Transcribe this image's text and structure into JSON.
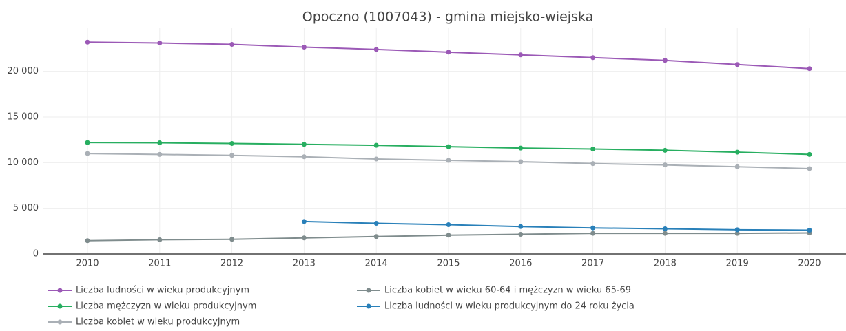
{
  "chart_data": {
    "type": "line",
    "title": "Opoczno (1007043) - gmina miejsko-wiejska",
    "categories": [
      "2010",
      "2011",
      "2012",
      "2013",
      "2014",
      "2015",
      "2016",
      "2017",
      "2018",
      "2019",
      "2020"
    ],
    "series": [
      {
        "name": "Liczba ludności w wieku produkcyjnym",
        "color": "#9b59b6",
        "values": [
          23200,
          23100,
          22950,
          22650,
          22400,
          22100,
          21800,
          21500,
          21200,
          20750,
          20300
        ]
      },
      {
        "name": "Liczba kobiet w wieku 60-64 i mężczyzn w wieku 65-69",
        "color": "#7f8c8d",
        "values": [
          1450,
          1550,
          1600,
          1750,
          1900,
          2050,
          2150,
          2250,
          2250,
          2250,
          2300
        ]
      },
      {
        "name": "Liczba mężczyzn w wieku produkcyjnym",
        "color": "#27ae60",
        "values": [
          12200,
          12170,
          12100,
          12000,
          11900,
          11750,
          11600,
          11500,
          11350,
          11150,
          10900
        ]
      },
      {
        "name": "Liczba ludności w wieku produkcyjnym do 24 roku życia",
        "color": "#2980b9",
        "values": [
          null,
          null,
          null,
          3550,
          3350,
          3200,
          3000,
          2850,
          2750,
          2650,
          2600
        ]
      },
      {
        "name": "Liczba kobiet w wieku produkcyjnym",
        "color": "#aab0b6",
        "values": [
          11000,
          10900,
          10800,
          10650,
          10400,
          10250,
          10100,
          9900,
          9750,
          9550,
          9350
        ]
      }
    ],
    "ylim": [
      0,
      24800
    ],
    "yticks": [
      0,
      {
        "value": 5000,
        "label": "5 000"
      },
      {
        "value": 10000,
        "label": "10 000"
      },
      {
        "value": 15000,
        "label": "15 000"
      },
      {
        "value": 20000,
        "label": "20 000"
      }
    ],
    "grid": true
  }
}
